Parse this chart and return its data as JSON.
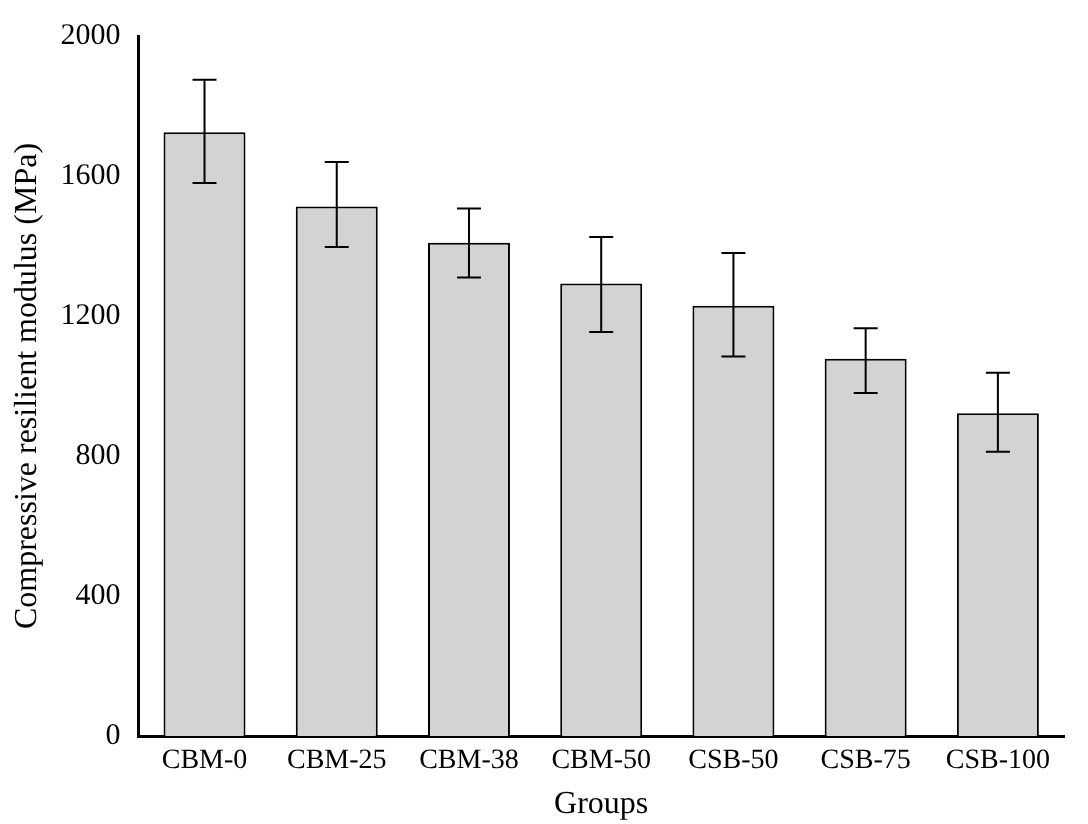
{
  "chart_data": {
    "type": "bar",
    "xlabel": "Groups",
    "ylabel": "Compressive resilient modulus (MPa)",
    "categories": [
      "CBM-0",
      "CBM-25",
      "CBM-38",
      "CBM-50",
      "CSB-50",
      "CSB-75",
      "CSB-100"
    ],
    "values": [
      1725,
      1513,
      1409,
      1293,
      1229,
      1078,
      922
    ],
    "errors": [
      [
        1580,
        1875
      ],
      [
        1397,
        1640
      ],
      [
        1310,
        1507
      ],
      [
        1154,
        1426
      ],
      [
        1084,
        1380
      ],
      [
        980,
        1165
      ],
      [
        812,
        1038
      ]
    ],
    "color": "#d3d3d3",
    "ylim": [
      0,
      2000
    ],
    "yticks": [
      0,
      400,
      800,
      1200,
      1600,
      2000
    ],
    "grid": false,
    "legend": false
  }
}
